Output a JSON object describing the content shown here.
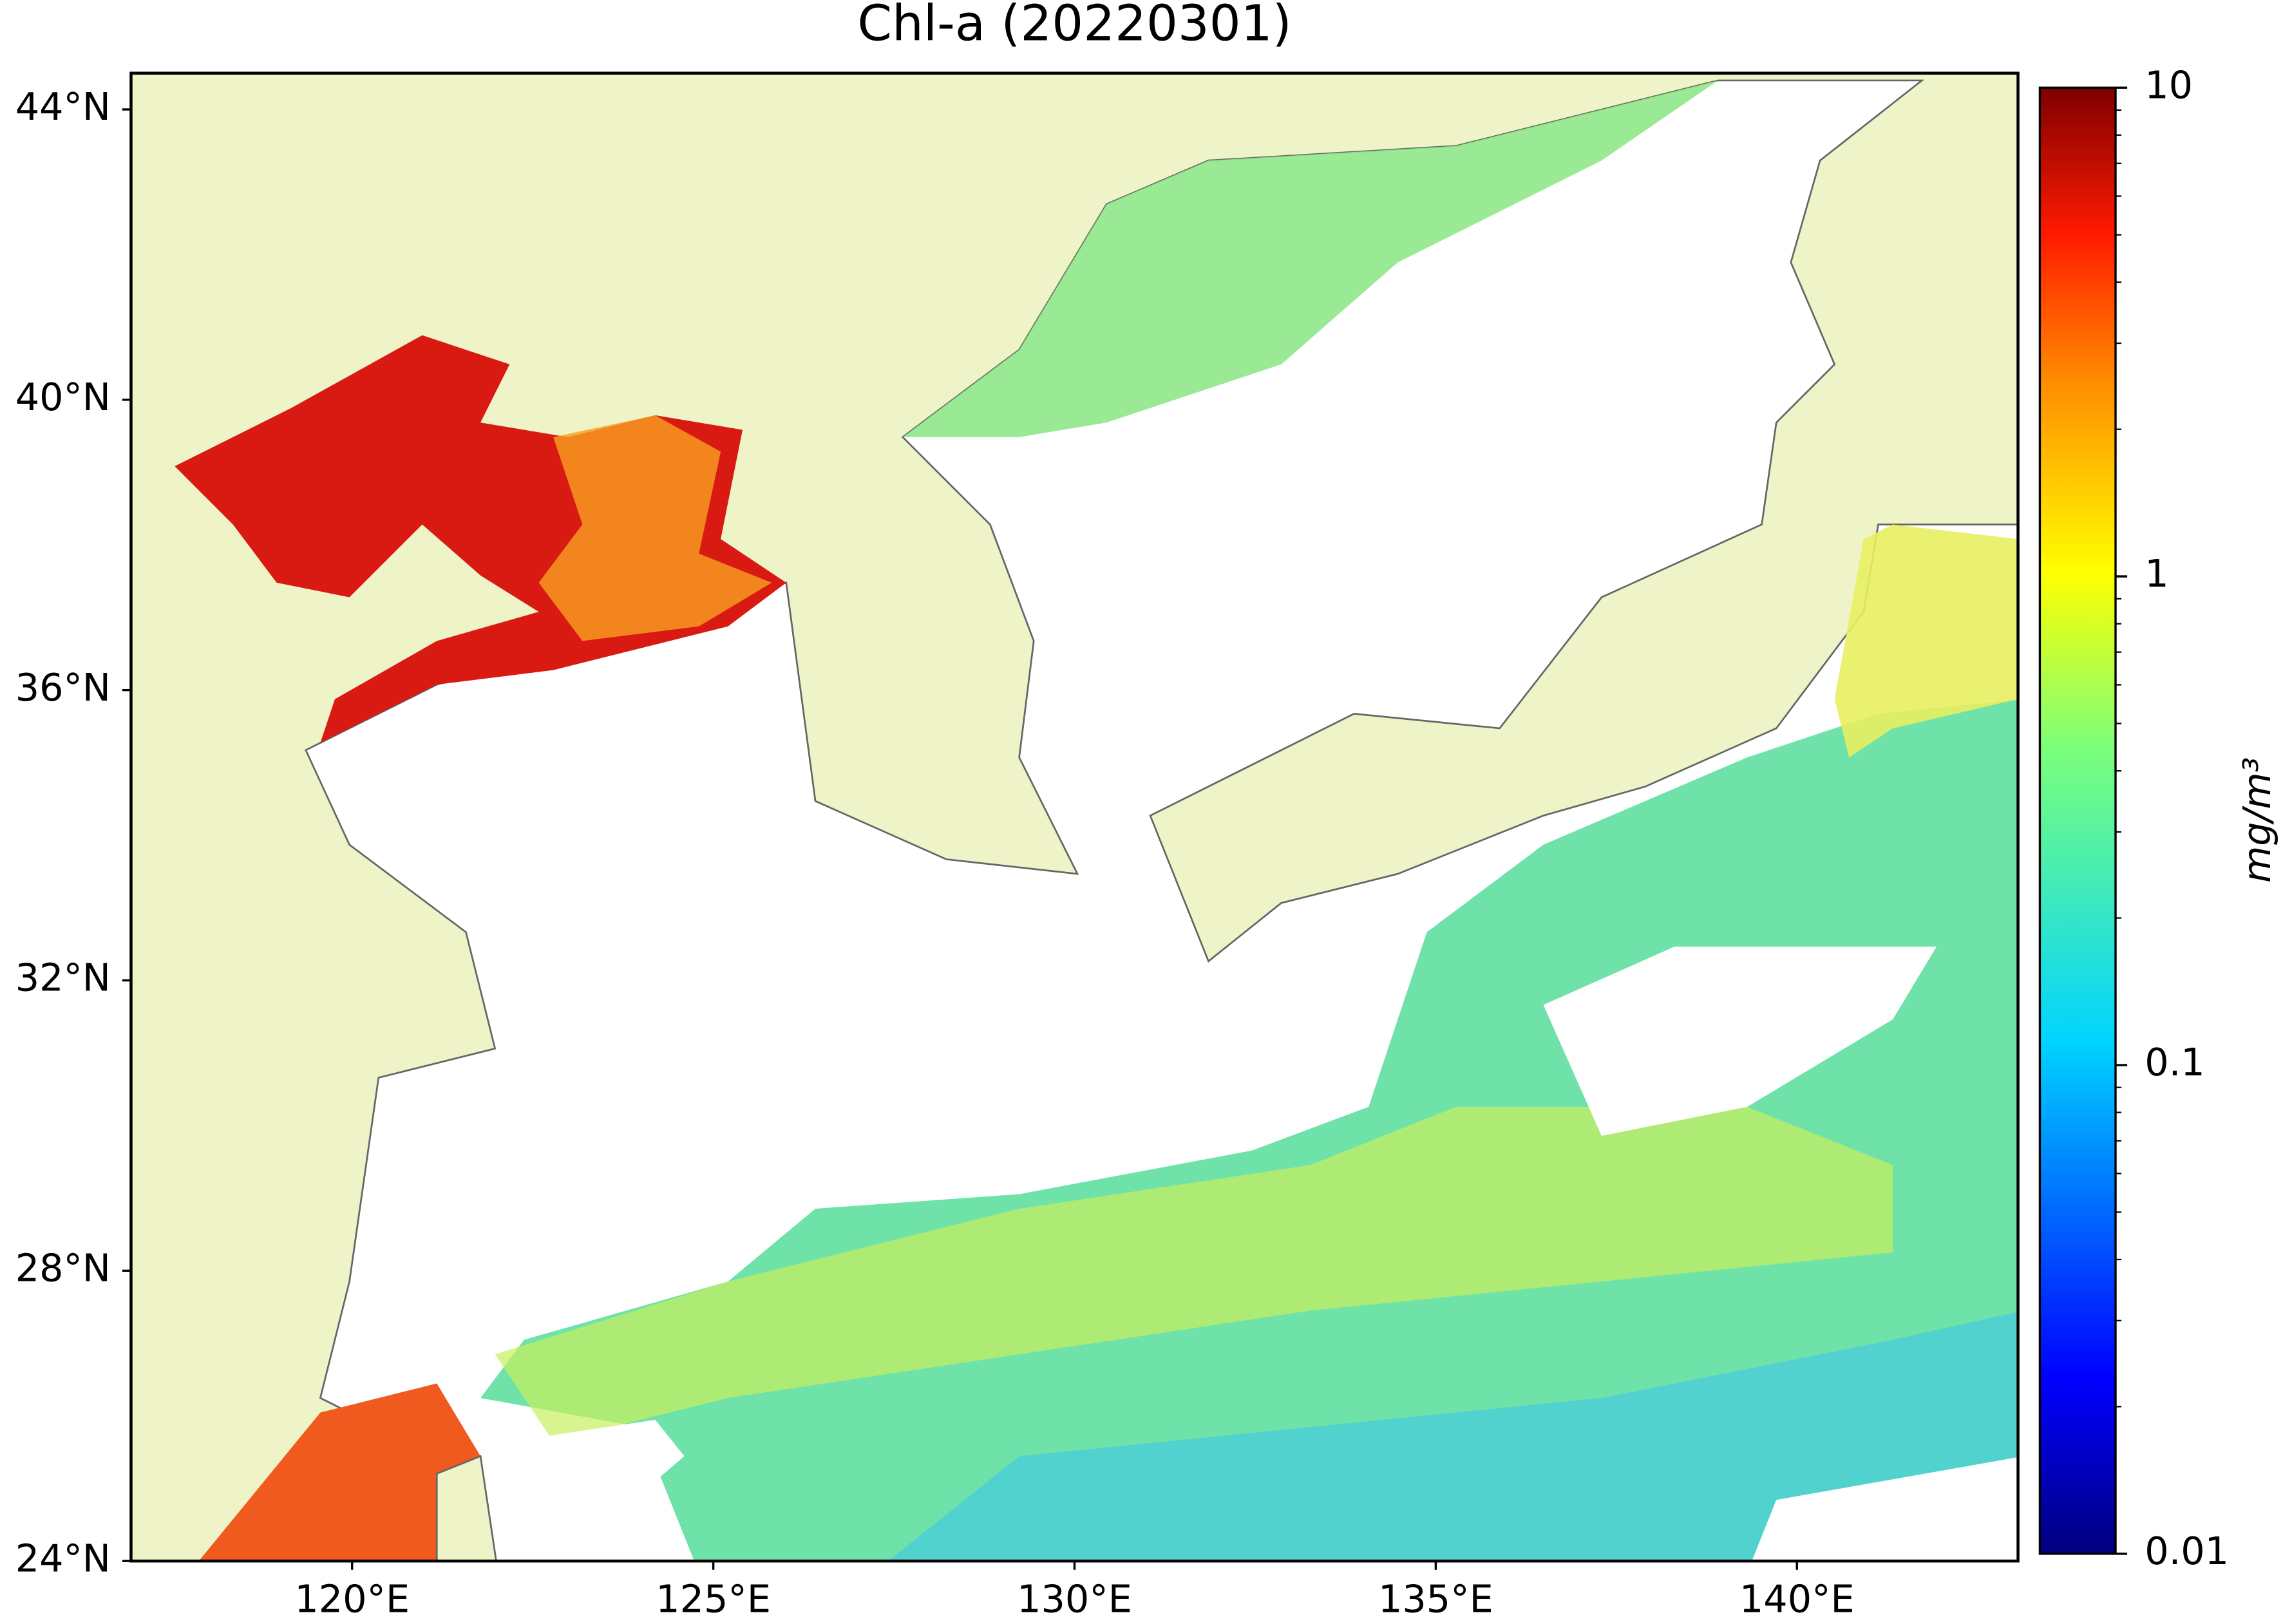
{
  "title": "Chl-a (20220301)",
  "map": {
    "lonlim": [
      116.94,
      143.06
    ],
    "latlim": [
      24,
      44.5
    ],
    "lon_ticks": [
      {
        "value": 120,
        "label": "120°E"
      },
      {
        "value": 125,
        "label": "125°E"
      },
      {
        "value": 130,
        "label": "130°E"
      },
      {
        "value": 135,
        "label": "135°E"
      },
      {
        "value": 140,
        "label": "140°E"
      }
    ],
    "lat_ticks": [
      {
        "value": 24,
        "label": "24°N"
      },
      {
        "value": 28,
        "label": "28°N"
      },
      {
        "value": 32,
        "label": "32°N"
      },
      {
        "value": 36,
        "label": "36°N"
      },
      {
        "value": 40,
        "label": "40°N"
      },
      {
        "value": 44,
        "label": "44°N"
      }
    ]
  },
  "colorbar": {
    "label": "mg/m³",
    "log_scale": true,
    "lim": [
      0.01,
      10
    ],
    "ticks": [
      0.01,
      0.1,
      1,
      10
    ]
  }
}
